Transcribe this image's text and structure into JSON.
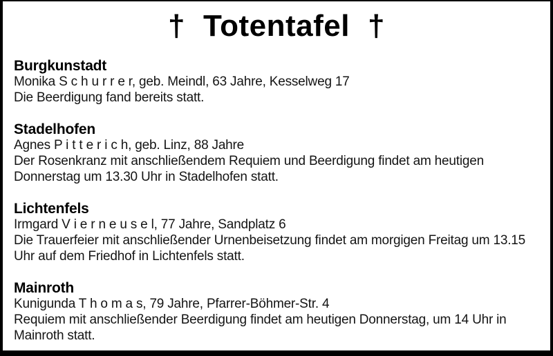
{
  "title": {
    "cross": "†",
    "text": "Totentafel"
  },
  "colors": {
    "background": "#ffffff",
    "text": "#141414",
    "heading_text": "#000000",
    "border": "#000000"
  },
  "sections": [
    {
      "city": "Burgkunstadt",
      "person": "Monika S c h u r r e r, geb. Meindl, 63 Jahre, Kesselweg 17",
      "details": "Die Beerdigung fand bereits statt."
    },
    {
      "city": "Stadelhofen",
      "person": "Agnes P i t t e r i c h, geb. Linz, 88 Jahre",
      "details": "Der Rosenkranz mit anschließendem Requiem und Beerdigung findet am heutigen\nDonnerstag um 13.30 Uhr in Stadelhofen statt."
    },
    {
      "city": "Lichtenfels",
      "person": "Irmgard V i e r n e u s e l, 77 Jahre, Sandplatz 6",
      "details": "Die Trauerfeier mit anschließender Urnenbeisetzung findet am morgigen Freitag um 13.15\nUhr auf dem Friedhof in Lichtenfels statt."
    },
    {
      "city": "Mainroth",
      "person": "Kunigunda T h o m a s, 79 Jahre, Pfarrer-Böhmer-Str. 4",
      "details": "Requiem mit anschließender Beerdigung findet am heutigen Donnerstag, um 14 Uhr in\nMainroth statt."
    }
  ]
}
